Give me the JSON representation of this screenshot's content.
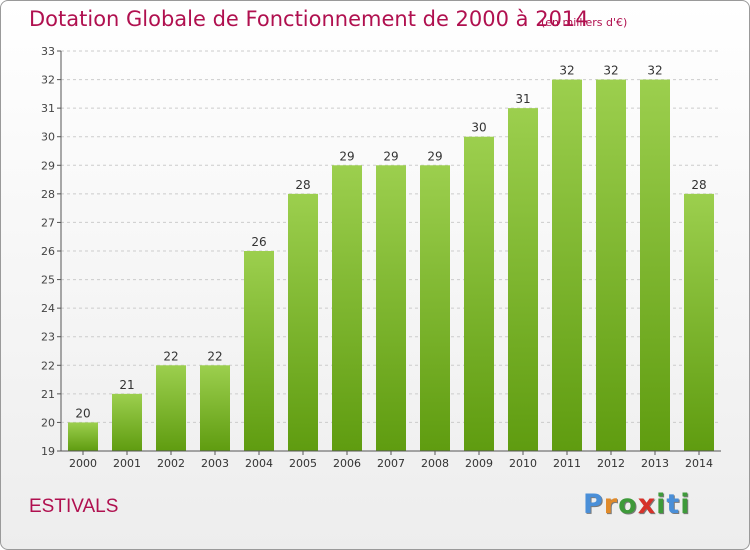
{
  "chart_data": {
    "type": "bar",
    "title": "Dotation Globale de Fonctionnement de 2000 à 2014",
    "subtitle": "(en milliers d'€)",
    "categories": [
      "2000",
      "2001",
      "2002",
      "2003",
      "2004",
      "2005",
      "2006",
      "2007",
      "2008",
      "2009",
      "2010",
      "2011",
      "2012",
      "2013",
      "2014"
    ],
    "values": [
      20,
      21,
      22,
      22,
      26,
      28,
      29,
      29,
      29,
      30,
      31,
      32,
      32,
      32,
      28
    ],
    "value_labels": [
      "20",
      "21",
      "22",
      "22",
      "26",
      "28",
      "29",
      "29",
      "29",
      "30",
      "31",
      "32",
      "32",
      "32",
      "28"
    ],
    "ylim": [
      19,
      33
    ],
    "yticks": [
      19,
      20,
      21,
      22,
      23,
      24,
      25,
      26,
      27,
      28,
      29,
      30,
      31,
      32,
      33
    ],
    "grid": "horizontal, dashed",
    "legend": "none",
    "colors": {
      "bar_light": "#9ccf4e",
      "bar_dark": "#5f9c10",
      "title": "#b0104f",
      "axis": "#555555",
      "grid": "#cccccc"
    }
  },
  "footer": {
    "commune": "ESTIVALS",
    "logo_letters": [
      "P",
      "r",
      "o",
      "x",
      "i",
      "t",
      "i"
    ],
    "logo_colors": [
      "#4a8fd8",
      "#e08a2a",
      "#3e9a3a",
      "#d6322a",
      "#3e9a3a",
      "#4a8fd8",
      "#3e9a3a"
    ]
  }
}
